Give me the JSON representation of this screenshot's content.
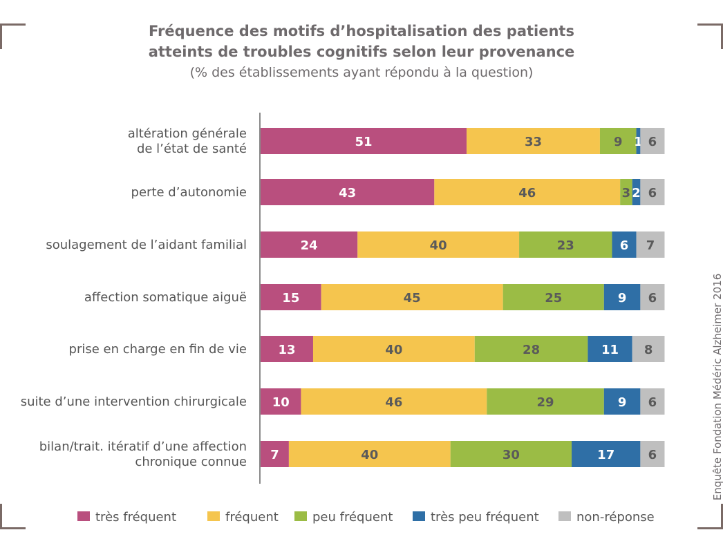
{
  "title_line1": "Fréquence des motifs d’hospitalisation des patients",
  "title_line2": "atteints de troubles cognitifs selon leur provenance",
  "subtitle": "(% des établissements ayant répondu à la question)",
  "source": "Enquête Fondation Médéric Alzheimer 2016",
  "colors": {
    "tres_frequent": "#b94f7e",
    "frequent": "#f5c54e",
    "peu_frequent": "#9bbc45",
    "tres_peu_frequent": "#2f6fa6",
    "non_reponse": "#bfbfbf"
  },
  "chart_data": {
    "type": "bar",
    "orientation": "horizontal",
    "stacked": true,
    "title": "Fréquence des motifs d’hospitalisation des patients atteints de troubles cognitifs selon leur provenance",
    "subtitle": "(% des établissements ayant répondu à la question)",
    "categories": [
      [
        "altération générale",
        "de l’état de santé"
      ],
      [
        "perte d’autonomie"
      ],
      [
        "soulagement de l’aidant familial"
      ],
      [
        "affection somatique aiguë"
      ],
      [
        "prise en charge en fin de vie"
      ],
      [
        "suite d’une intervention chirurgicale"
      ],
      [
        "bilan/trait. itératif d’une affection",
        "chronique connue"
      ]
    ],
    "series": [
      {
        "name": "très fréquent",
        "color": "#b94f7e",
        "label_color": "#ffffff",
        "values": [
          51,
          43,
          24,
          15,
          13,
          10,
          7
        ]
      },
      {
        "name": "fréquent",
        "color": "#f5c54e",
        "label_color": "#5a5a5a",
        "values": [
          33,
          46,
          40,
          45,
          40,
          46,
          40
        ]
      },
      {
        "name": "peu fréquent",
        "color": "#9bbc45",
        "label_color": "#5a5a5a",
        "values": [
          9,
          3,
          23,
          25,
          28,
          29,
          30
        ]
      },
      {
        "name": "très peu fréquent",
        "color": "#2f6fa6",
        "label_color": "#ffffff",
        "values": [
          1,
          2,
          6,
          9,
          11,
          9,
          17
        ]
      },
      {
        "name": "non-réponse",
        "color": "#bfbfbf",
        "label_color": "#5a5a5a",
        "values": [
          6,
          6,
          7,
          6,
          8,
          6,
          6
        ]
      }
    ],
    "xlim": [
      0,
      103
    ],
    "legend_position": "bottom"
  }
}
